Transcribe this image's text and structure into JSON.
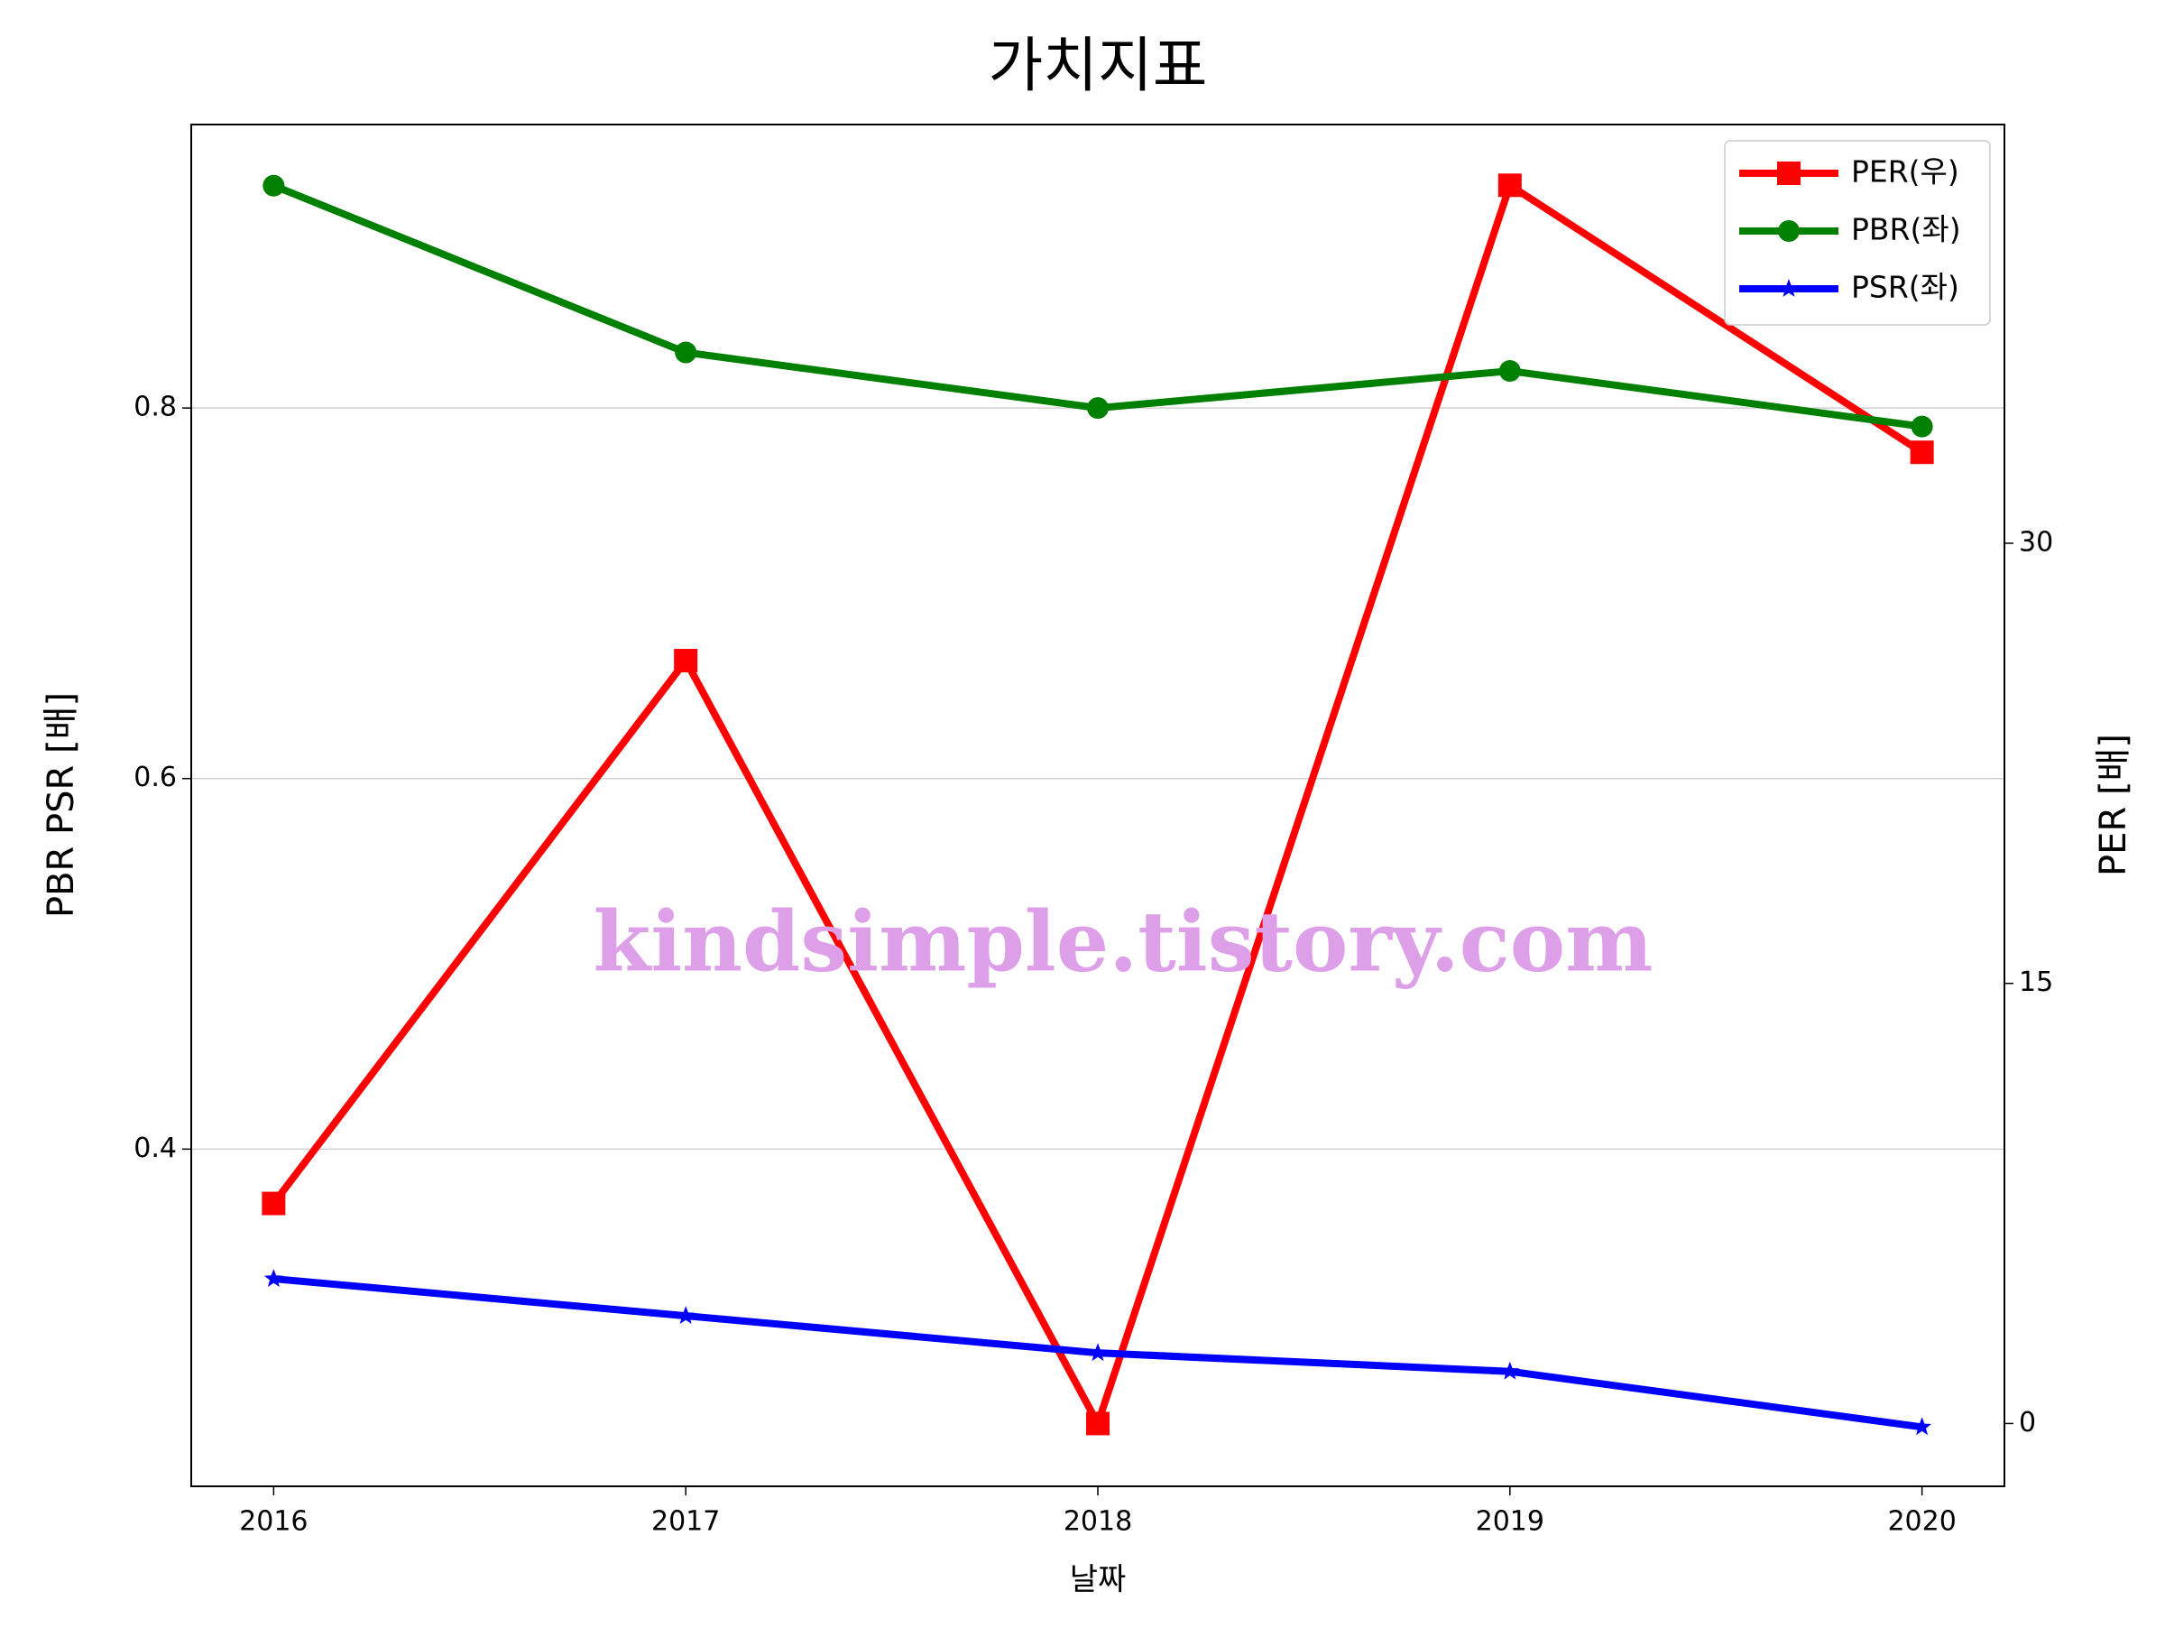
{
  "chart_data": {
    "type": "line",
    "title": "가치지표",
    "x_label": "날짜",
    "y_label": "PBR PSR [배]",
    "y_label_color": "#008000",
    "y2_label": "PER [배]",
    "y2_label_color": "#ff0000",
    "annotation": "kindsimple.tistory.com",
    "x": [
      2016,
      2017,
      2018,
      2019,
      2020
    ],
    "xlim": [
      2015.8,
      2020.2
    ],
    "xticks": [
      2016,
      2017,
      2018,
      2019,
      2020
    ],
    "ylim": [
      0.218,
      0.953
    ],
    "yticks": [
      0.4,
      0.6,
      0.8
    ],
    "y2lim": [
      -2.14,
      44.27
    ],
    "y2ticks": [
      0,
      15,
      30
    ],
    "grid": true,
    "legend_loc": "upper right",
    "series": [
      {
        "name": "PER(우)",
        "color": "#ff0000",
        "marker": "square",
        "axis": "y2",
        "values": [
          7.5,
          26.0,
          0,
          42.2,
          33.1
        ]
      },
      {
        "name": "PBR(좌)",
        "color": "#008000",
        "marker": "circle",
        "values": [
          0.92,
          0.83,
          0.8,
          0.82,
          0.79
        ]
      },
      {
        "name": "PSR(좌)",
        "color": "#0000ff",
        "marker": "star",
        "values": [
          0.33,
          0.31,
          0.29,
          0.28,
          0.25
        ]
      }
    ]
  }
}
